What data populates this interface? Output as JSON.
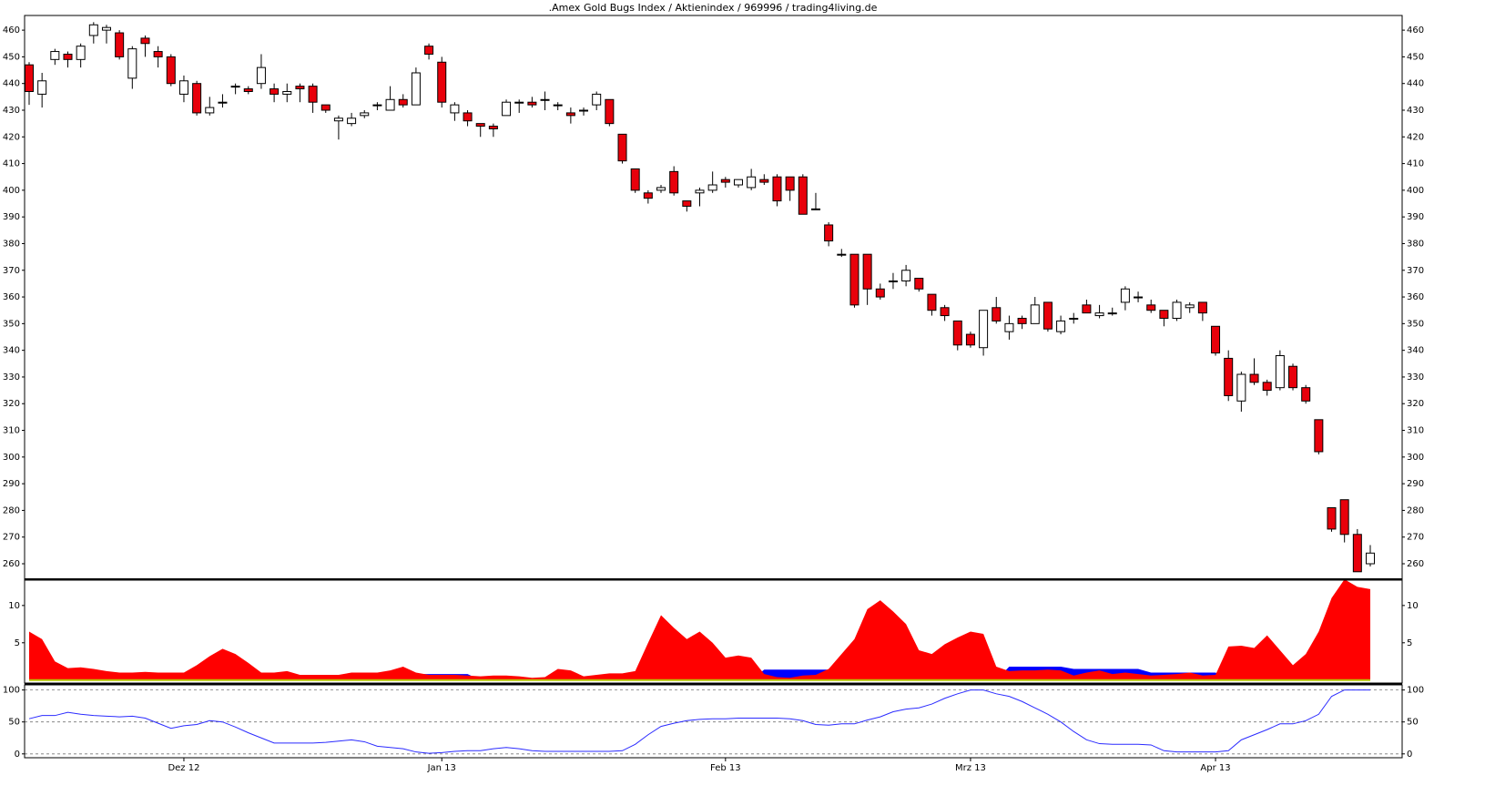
{
  "chart_data": [
    {
      "type": "candlestick",
      "title": ".Amex Gold Bugs Index / Aktienindex / 969996 / trading4living.de",
      "up_color": "#ffffff",
      "down_color": "#e8000b",
      "open": [
        447,
        436,
        449,
        451,
        449,
        458,
        460,
        459,
        442,
        457,
        452,
        450,
        436,
        440,
        429,
        433,
        439,
        438,
        440,
        438,
        436,
        439,
        439,
        432,
        426,
        425,
        428,
        432,
        430,
        434,
        432,
        454,
        448,
        429,
        429,
        425,
        424,
        428,
        433,
        433,
        434,
        432,
        429,
        430,
        432,
        434,
        421,
        408,
        399,
        400,
        407,
        396,
        399,
        400,
        404,
        402,
        401,
        404,
        405,
        405,
        405,
        393,
        387,
        376,
        376,
        376,
        363,
        366,
        366,
        367,
        361,
        356,
        351,
        346,
        341,
        356,
        347,
        352,
        350,
        358,
        347,
        352,
        357,
        353,
        354,
        358,
        360,
        357,
        355,
        352,
        356,
        358,
        349,
        337,
        321,
        331,
        328,
        326,
        334,
        326,
        314,
        281,
        284,
        271,
        260
      ],
      "high": [
        448,
        444,
        453,
        452,
        455,
        463,
        462,
        460,
        454,
        458,
        454,
        451,
        443,
        441,
        435,
        436,
        440,
        439,
        451,
        440,
        440,
        440,
        440,
        432,
        428,
        429,
        430,
        433,
        439,
        436,
        446,
        455,
        450,
        433,
        430,
        425,
        425,
        434,
        434,
        435,
        437,
        433,
        431,
        431,
        437,
        434,
        421,
        408,
        400,
        402,
        409,
        396,
        401,
        407,
        405,
        404,
        408,
        406,
        406,
        405,
        406,
        399,
        388,
        378,
        376,
        376,
        365,
        369,
        372,
        367,
        361,
        357,
        351,
        347,
        355,
        360,
        353,
        353,
        360,
        358,
        353,
        354,
        359,
        357,
        356,
        364,
        362,
        359,
        355,
        359,
        358,
        358,
        349,
        340,
        332,
        337,
        329,
        340,
        335,
        327,
        314,
        281,
        284,
        273,
        267
      ],
      "low": [
        432,
        431,
        447,
        446,
        446,
        455,
        455,
        449,
        438,
        450,
        446,
        439,
        433,
        428,
        428,
        431,
        436,
        436,
        438,
        433,
        433,
        433,
        429,
        429,
        419,
        424,
        427,
        430,
        430,
        431,
        432,
        449,
        431,
        426,
        424,
        420,
        420,
        428,
        429,
        431,
        430,
        430,
        425,
        428,
        430,
        424,
        410,
        399,
        395,
        399,
        398,
        392,
        394,
        399,
        401,
        401,
        400,
        402,
        394,
        396,
        391,
        393,
        379,
        375,
        356,
        357,
        359,
        363,
        364,
        362,
        353,
        351,
        340,
        341,
        338,
        350,
        344,
        348,
        350,
        347,
        346,
        350,
        354,
        352,
        353,
        355,
        358,
        354,
        349,
        351,
        354,
        351,
        338,
        321,
        317,
        327,
        323,
        325,
        325,
        320,
        301,
        272,
        268,
        257,
        259
      ],
      "close": [
        437,
        441,
        452,
        449,
        454,
        462,
        461,
        450,
        453,
        455,
        450,
        440,
        441,
        429,
        431,
        433,
        439,
        437,
        446,
        436,
        437,
        438,
        433,
        430,
        427,
        427,
        429,
        432,
        434,
        432,
        444,
        451,
        433,
        432,
        426,
        424,
        423,
        433,
        433,
        432,
        434,
        432,
        428,
        430,
        436,
        425,
        411,
        400,
        397,
        401,
        399,
        394,
        400,
        402,
        403,
        404,
        405,
        403,
        396,
        400,
        391,
        393,
        381,
        376,
        357,
        363,
        360,
        366,
        370,
        363,
        355,
        353,
        342,
        342,
        355,
        351,
        350,
        350,
        357,
        348,
        351,
        352,
        354,
        354,
        354,
        363,
        360,
        355,
        352,
        358,
        357,
        354,
        339,
        323,
        331,
        328,
        325,
        338,
        326,
        321,
        302,
        273,
        271,
        257,
        264
      ],
      "ylim": [
        254.2,
        465.5
      ],
      "yticks": [
        260,
        270,
        280,
        290,
        300,
        310,
        320,
        330,
        340,
        350,
        360,
        370,
        380,
        390,
        400,
        410,
        420,
        430,
        440,
        450,
        460
      ]
    },
    {
      "type": "area",
      "series": [
        {
          "color": "#0000ff",
          "values": [
            0,
            0,
            0,
            0,
            0,
            0,
            1,
            1,
            1,
            1,
            1,
            1,
            1,
            0,
            0,
            0,
            0,
            0,
            0,
            0,
            0,
            0,
            0,
            0,
            0,
            0,
            0,
            0,
            0,
            0,
            0.8,
            0.8,
            0.8,
            0.8,
            0.8,
            0,
            0,
            0,
            0,
            0,
            0,
            0,
            0,
            0,
            0,
            0,
            0,
            0,
            0,
            0,
            0,
            0,
            0,
            0,
            0,
            0,
            0,
            1.4,
            1.4,
            1.4,
            1.4,
            1.4,
            1.4,
            0,
            0,
            0,
            0,
            0,
            0,
            0,
            0,
            0,
            0,
            0,
            0,
            0,
            1.8,
            1.8,
            1.8,
            1.8,
            1.8,
            1.5,
            1.5,
            1.5,
            1.5,
            1.5,
            1.5,
            1,
            1,
            1,
            1,
            1,
            1,
            0,
            0,
            0,
            0,
            0,
            0,
            0,
            0,
            0,
            0,
            0,
            0
          ]
        },
        {
          "color": "#ff0000",
          "values": [
            6.5,
            5.5,
            2.5,
            1.6,
            1.7,
            1.5,
            1.2,
            1,
            1,
            1.1,
            1,
            1,
            1,
            2,
            3.2,
            4.2,
            3.5,
            2.3,
            1,
            1,
            1.2,
            0.7,
            0.7,
            0.7,
            0.7,
            1,
            1,
            1,
            1.3,
            1.8,
            1,
            0.7,
            0.7,
            0.7,
            0.6,
            0.5,
            0.6,
            0.6,
            0.5,
            0.3,
            0.4,
            1.5,
            1.3,
            0.5,
            0.7,
            0.9,
            0.9,
            1.2,
            5,
            8.7,
            7,
            5.5,
            6.5,
            5,
            3,
            3.3,
            3,
            0.8,
            0.4,
            0.3,
            0.6,
            0.7,
            1.5,
            3.5,
            5.5,
            9.5,
            10.7,
            9.2,
            7.5,
            4,
            3.5,
            4.8,
            5.7,
            6.5,
            6.2,
            1.8,
            1.2,
            1.3,
            1.3,
            1.4,
            1.3,
            0.6,
            1,
            1.3,
            0.8,
            1,
            0.8,
            0.6,
            0.7,
            0.8,
            1,
            0.6,
            0.7,
            4.5,
            4.6,
            4.3,
            6,
            4,
            2,
            3.5,
            6.5,
            11,
            13.5,
            12.5,
            12.2
          ]
        }
      ],
      "ylim": [
        -0.4,
        13.4
      ],
      "yticks": [
        5,
        10
      ]
    },
    {
      "type": "line",
      "color": "#2b2bff",
      "values": [
        55,
        60,
        60,
        65,
        62,
        60,
        59,
        58,
        59,
        56,
        48,
        40,
        44,
        46,
        52,
        50,
        42,
        33,
        25,
        17,
        17,
        17,
        17,
        18,
        20,
        22,
        19,
        12,
        10,
        8,
        3,
        1,
        2,
        4,
        5,
        5,
        8,
        10,
        8,
        5,
        4,
        4,
        4,
        4,
        4,
        4,
        5,
        15,
        30,
        43,
        48,
        52,
        54,
        55,
        55,
        56,
        56,
        56,
        56,
        55,
        52,
        46,
        45,
        47,
        47,
        53,
        58,
        66,
        70,
        72,
        78,
        87,
        94,
        100,
        100,
        94,
        90,
        82,
        72,
        62,
        50,
        35,
        22,
        16,
        15,
        15,
        15,
        14,
        5,
        3,
        3,
        3,
        3,
        5,
        22,
        30,
        38,
        47,
        47,
        52,
        62,
        90,
        100,
        100,
        100
      ],
      "ylim": [
        -6,
        108
      ],
      "yticks": [
        0,
        50,
        100
      ],
      "grid": true,
      "xticks": [
        {
          "value": 12,
          "label": "Dez 12"
        },
        {
          "value": 32,
          "label": "Jan 13"
        },
        {
          "value": 54,
          "label": "Feb 13"
        },
        {
          "value": 73,
          "label": "Mrz 13"
        },
        {
          "value": 92,
          "label": "Apr 13"
        }
      ]
    }
  ]
}
